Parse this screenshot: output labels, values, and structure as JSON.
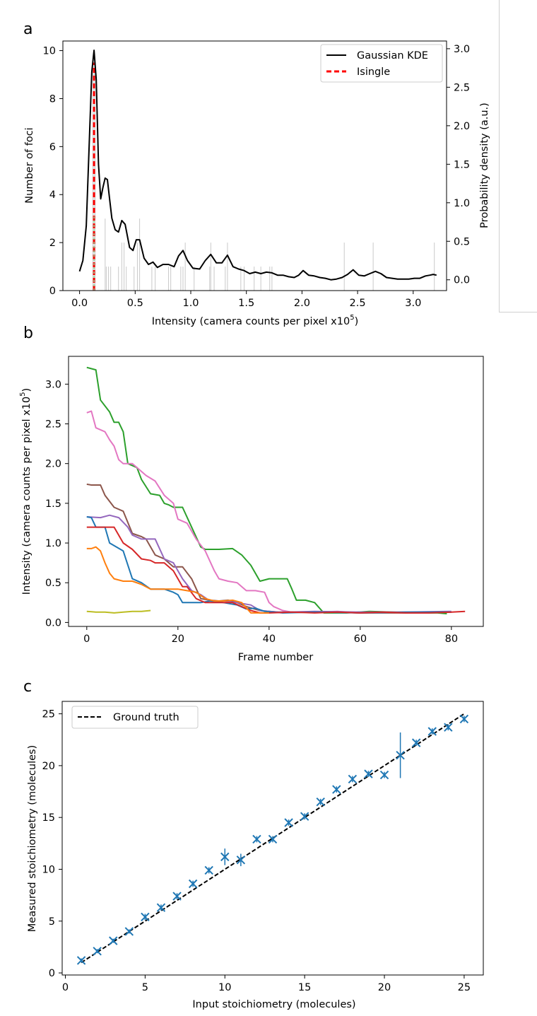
{
  "chart_data": [
    {
      "panel": "a",
      "type": "histogram_kde",
      "title": "",
      "xlabel": "Intensity (camera counts per pixel x10",
      "xlabel_sup": "5",
      "xlabel_end": ")",
      "ylabel": "Number of foci",
      "ylabel_right": "Probability density (a.u.)",
      "xlim": [
        -0.15,
        3.3
      ],
      "ylim": [
        0,
        10.4
      ],
      "ylim_right": [
        -0.14,
        3.1
      ],
      "xticks": [
        "0.0",
        "0.5",
        "1.0",
        "1.5",
        "2.0",
        "2.5",
        "3.0"
      ],
      "yticks": [
        "0",
        "2",
        "4",
        "6",
        "8",
        "10"
      ],
      "yticks_right": [
        "0.0",
        "0.5",
        "1.0",
        "1.5",
        "2.0",
        "2.5",
        "3.0"
      ],
      "legend": [
        {
          "label": "Gaussian KDE",
          "color": "#000000",
          "style": "solid"
        },
        {
          "label": "Isingle",
          "color": "#ff0000",
          "style": "dashed"
        }
      ],
      "isingle_x": 0.13,
      "isingle_top": 9.5,
      "kde": {
        "x": [
          0,
          0.03,
          0.06,
          0.09,
          0.11,
          0.13,
          0.15,
          0.17,
          0.19,
          0.21,
          0.23,
          0.25,
          0.27,
          0.29,
          0.32,
          0.35,
          0.38,
          0.41,
          0.45,
          0.48,
          0.51,
          0.54,
          0.58,
          0.62,
          0.66,
          0.7,
          0.75,
          0.8,
          0.85,
          0.89,
          0.93,
          0.97,
          1.02,
          1.08,
          1.13,
          1.18,
          1.23,
          1.28,
          1.33,
          1.38,
          1.43,
          1.48,
          1.53,
          1.58,
          1.63,
          1.68,
          1.73,
          1.78,
          1.83,
          1.88,
          1.93,
          1.97,
          2.01,
          2.06,
          2.11,
          2.16,
          2.21,
          2.26,
          2.31,
          2.36,
          2.41,
          2.46,
          2.51,
          2.56,
          2.61,
          2.66,
          2.71,
          2.76,
          2.81,
          2.86,
          2.91,
          2.96,
          3.01,
          3.06,
          3.11,
          3.15,
          3.18,
          3.21
        ],
        "y": [
          0.11,
          0.25,
          0.7,
          1.9,
          2.7,
          2.98,
          2.6,
          1.5,
          1.05,
          1.2,
          1.32,
          1.3,
          1.05,
          0.8,
          0.65,
          0.62,
          0.77,
          0.72,
          0.42,
          0.38,
          0.52,
          0.52,
          0.28,
          0.2,
          0.23,
          0.16,
          0.2,
          0.2,
          0.17,
          0.31,
          0.38,
          0.25,
          0.15,
          0.14,
          0.25,
          0.33,
          0.22,
          0.22,
          0.32,
          0.17,
          0.14,
          0.12,
          0.08,
          0.1,
          0.08,
          0.1,
          0.09,
          0.06,
          0.06,
          0.04,
          0.03,
          0.06,
          0.12,
          0.06,
          0.05,
          0.03,
          0.02,
          0.0,
          0.01,
          0.03,
          0.07,
          0.13,
          0.06,
          0.05,
          0.08,
          0.11,
          0.08,
          0.03,
          0.02,
          0.01,
          0.01,
          0.01,
          0.02,
          0.02,
          0.05,
          0.06,
          0.07,
          0.06
        ]
      },
      "hist_bars_x": [
        0.12,
        0.13,
        0.14,
        0.23,
        0.24,
        0.26,
        0.28,
        0.35,
        0.38,
        0.4,
        0.42,
        0.49,
        0.52,
        0.54,
        0.65,
        0.68,
        0.8,
        0.82,
        0.91,
        0.93,
        0.95,
        1.03,
        1.17,
        1.18,
        1.21,
        1.31,
        1.33,
        1.45,
        1.48,
        1.57,
        1.63,
        1.71,
        1.73,
        2.38,
        2.64,
        3.19
      ],
      "hist_bars_y": [
        9.5,
        9.5,
        9.5,
        3.0,
        1.0,
        1.0,
        1.0,
        1.0,
        2.0,
        2.0,
        1.0,
        1.0,
        2.0,
        3.0,
        1.0,
        1.0,
        1.0,
        1.0,
        1.0,
        1.0,
        2.0,
        1.0,
        1.0,
        2.0,
        1.0,
        1.0,
        2.0,
        1.0,
        1.0,
        1.0,
        1.0,
        1.0,
        1.0,
        2.0,
        2.0,
        2.0
      ]
    },
    {
      "panel": "b",
      "type": "line",
      "xlabel": "Frame number",
      "ylabel": "Intensity (camera counts per pixel x10",
      "ylabel_sup": "5",
      "ylabel_end": ")",
      "xlim": [
        -4,
        87
      ],
      "ylim": [
        -0.05,
        3.35
      ],
      "xticks": [
        "0",
        "20",
        "40",
        "60",
        "80"
      ],
      "yticks": [
        "0.0",
        "0.5",
        "1.0",
        "1.5",
        "2.0",
        "2.5",
        "3.0"
      ],
      "series": [
        {
          "name": "green",
          "color": "#2ca02c",
          "x": [
            0,
            2,
            3,
            5,
            6,
            7,
            8,
            9,
            11,
            12,
            14,
            16,
            17,
            18,
            19,
            21,
            23,
            25,
            26,
            29,
            32,
            34,
            36,
            38,
            40,
            44,
            45,
            46,
            48,
            50,
            52,
            57,
            62,
            67,
            72,
            75,
            77,
            79
          ],
          "y": [
            3.21,
            3.18,
            2.8,
            2.65,
            2.52,
            2.52,
            2.4,
            2.0,
            1.95,
            1.8,
            1.62,
            1.6,
            1.5,
            1.48,
            1.45,
            1.45,
            1.2,
            0.95,
            0.92,
            0.92,
            0.93,
            0.85,
            0.72,
            0.52,
            0.55,
            0.55,
            0.42,
            0.28,
            0.28,
            0.25,
            0.12,
            0.12,
            0.14,
            0.13,
            0.12,
            0.12,
            0.12,
            0.11
          ]
        },
        {
          "name": "pink",
          "color": "#e377c2",
          "x": [
            0,
            1,
            2,
            4,
            5,
            6,
            7,
            8,
            10,
            11,
            13,
            15,
            17,
            19,
            20,
            22,
            24,
            26,
            28,
            29,
            31,
            33,
            35,
            37,
            39,
            40,
            41,
            43,
            45,
            50,
            55,
            60,
            65,
            70,
            75
          ],
          "y": [
            2.64,
            2.66,
            2.45,
            2.4,
            2.3,
            2.22,
            2.05,
            2.0,
            2.0,
            1.95,
            1.85,
            1.78,
            1.6,
            1.5,
            1.3,
            1.25,
            1.05,
            0.9,
            0.65,
            0.55,
            0.52,
            0.5,
            0.4,
            0.4,
            0.38,
            0.25,
            0.2,
            0.15,
            0.13,
            0.13,
            0.14,
            0.12,
            0.13,
            0.12,
            0.12
          ]
        },
        {
          "name": "brown",
          "color": "#8c564b",
          "x": [
            0,
            1,
            3,
            4,
            6,
            8,
            10,
            12,
            13,
            15,
            17,
            19,
            21,
            23,
            25,
            27,
            29,
            31,
            33,
            35,
            38,
            40,
            42,
            44,
            48,
            55,
            60,
            70,
            80
          ],
          "y": [
            1.74,
            1.73,
            1.73,
            1.6,
            1.45,
            1.4,
            1.12,
            1.08,
            1.05,
            0.85,
            0.8,
            0.7,
            0.7,
            0.55,
            0.3,
            0.28,
            0.27,
            0.28,
            0.25,
            0.2,
            0.15,
            0.14,
            0.13,
            0.13,
            0.13,
            0.13,
            0.12,
            0.12,
            0.13
          ]
        },
        {
          "name": "purple",
          "color": "#9467bd",
          "x": [
            0,
            3,
            5,
            7,
            9,
            10,
            12,
            15,
            17,
            19,
            21,
            23,
            25,
            27,
            30,
            33,
            36,
            38,
            40,
            42,
            44,
            50,
            60,
            70,
            80
          ],
          "y": [
            1.33,
            1.32,
            1.35,
            1.32,
            1.2,
            1.1,
            1.05,
            1.05,
            0.8,
            0.75,
            0.55,
            0.4,
            0.35,
            0.27,
            0.27,
            0.25,
            0.22,
            0.15,
            0.14,
            0.13,
            0.13,
            0.14,
            0.13,
            0.13,
            0.14
          ]
        },
        {
          "name": "blue",
          "color": "#1f77b4",
          "x": [
            0,
            1,
            2,
            4,
            5,
            8,
            10,
            12,
            14,
            17,
            19,
            20,
            21,
            23,
            25,
            27,
            30,
            33,
            35,
            37,
            39,
            41,
            43,
            50,
            60,
            70,
            80
          ],
          "y": [
            1.33,
            1.32,
            1.2,
            1.2,
            1.0,
            0.9,
            0.55,
            0.5,
            0.42,
            0.42,
            0.38,
            0.35,
            0.25,
            0.25,
            0.25,
            0.27,
            0.25,
            0.22,
            0.17,
            0.18,
            0.14,
            0.13,
            0.12,
            0.13,
            0.12,
            0.13,
            0.13
          ]
        },
        {
          "name": "red",
          "color": "#d62728",
          "x": [
            0,
            1,
            3,
            6,
            8,
            10,
            12,
            14,
            15,
            17,
            19,
            21,
            22,
            24,
            26,
            28,
            30,
            32,
            34,
            36,
            38,
            40,
            45,
            50,
            55,
            60,
            65,
            70,
            75,
            80,
            83
          ],
          "y": [
            1.2,
            1.2,
            1.2,
            1.2,
            1.0,
            0.92,
            0.8,
            0.78,
            0.75,
            0.75,
            0.65,
            0.45,
            0.45,
            0.3,
            0.25,
            0.25,
            0.25,
            0.25,
            0.2,
            0.15,
            0.12,
            0.12,
            0.13,
            0.12,
            0.13,
            0.12,
            0.13,
            0.12,
            0.12,
            0.13,
            0.14
          ]
        },
        {
          "name": "orange",
          "color": "#ff7f0e",
          "x": [
            0,
            1,
            2,
            3,
            4,
            5,
            6,
            8,
            10,
            12,
            14,
            16,
            18,
            20,
            22,
            24,
            26,
            28,
            30,
            32,
            34,
            36,
            38,
            40
          ],
          "y": [
            0.93,
            0.93,
            0.95,
            0.9,
            0.75,
            0.62,
            0.55,
            0.52,
            0.52,
            0.48,
            0.42,
            0.42,
            0.42,
            0.42,
            0.4,
            0.38,
            0.3,
            0.27,
            0.27,
            0.28,
            0.25,
            0.12,
            0.12,
            0.12
          ]
        },
        {
          "name": "olive",
          "color": "#bcbd22",
          "x": [
            0,
            2,
            4,
            6,
            8,
            10,
            12,
            14
          ],
          "y": [
            0.14,
            0.13,
            0.13,
            0.12,
            0.13,
            0.14,
            0.14,
            0.15
          ]
        }
      ]
    },
    {
      "panel": "c",
      "type": "scatter",
      "xlabel": "Input stoichiometry (molecules)",
      "ylabel": "Measured stoichiometry (molecules)",
      "xlim": [
        -0.2,
        26.2
      ],
      "ylim": [
        -0.2,
        26.2
      ],
      "xticks": [
        "0",
        "5",
        "10",
        "15",
        "20",
        "25"
      ],
      "yticks": [
        "0",
        "5",
        "10",
        "15",
        "20",
        "25"
      ],
      "legend": [
        {
          "label": "Ground truth",
          "color": "#000000",
          "style": "dashed"
        }
      ],
      "x": [
        1,
        2,
        3,
        4,
        5,
        6,
        7,
        8,
        9,
        10,
        11,
        12,
        13,
        14,
        15,
        16,
        17,
        18,
        19,
        20,
        21,
        22,
        23,
        24,
        25
      ],
      "y": [
        1.2,
        2.1,
        3.1,
        4.0,
        5.4,
        6.3,
        7.4,
        8.6,
        9.9,
        11.2,
        10.9,
        12.9,
        12.9,
        14.5,
        15.1,
        16.5,
        17.7,
        18.7,
        19.2,
        19.1,
        21.0,
        22.2,
        23.3,
        23.7,
        24.5
      ],
      "yerr": [
        0.2,
        0.2,
        0.2,
        0.2,
        0.3,
        0.3,
        0.3,
        0.3,
        0.3,
        0.8,
        0.6,
        0.3,
        0.3,
        0.3,
        0.3,
        0.3,
        0.3,
        0.3,
        0.3,
        0.3,
        2.2,
        0.3,
        0.3,
        0.3,
        0.3
      ],
      "marker_color": "#1f77b4"
    }
  ],
  "panel_labels": [
    "a",
    "b",
    "c"
  ]
}
